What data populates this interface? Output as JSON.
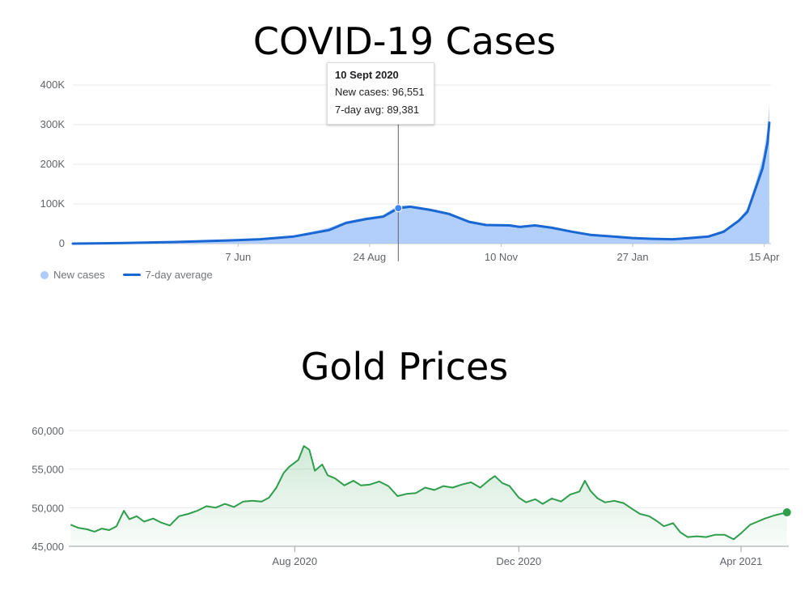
{
  "chart_data": [
    {
      "type": "area",
      "title": "COVID-19 Cases",
      "y_ticks": [
        "400K",
        "300K",
        "200K",
        "100K",
        "0"
      ],
      "y_tick_values": [
        400000,
        300000,
        200000,
        100000,
        0
      ],
      "x_tick_labels": [
        "7 Jun",
        "24 Aug",
        "10 Nov",
        "27 Jan",
        "15 Apr"
      ],
      "x_tick_dates": [
        "2020-06-07",
        "2020-08-24",
        "2020-11-10",
        "2021-01-27",
        "2021-04-15"
      ],
      "ylim": [
        0,
        400000
      ],
      "xlim": [
        "2020-03-01",
        "2021-04-19"
      ],
      "grid": true,
      "legend_position": "bottom-left",
      "series": [
        {
          "name": "7-day average",
          "style": "line",
          "color": "#1967d2",
          "points": [
            [
              "2020-03-01",
              0
            ],
            [
              "2020-04-01",
              1500
            ],
            [
              "2020-05-01",
              4000
            ],
            [
              "2020-06-01",
              8000
            ],
            [
              "2020-06-20",
              11000
            ],
            [
              "2020-07-10",
              18000
            ],
            [
              "2020-07-31",
              34000
            ],
            [
              "2020-08-10",
              52000
            ],
            [
              "2020-08-22",
              62000
            ],
            [
              "2020-09-01",
              68000
            ],
            [
              "2020-09-10",
              89381
            ],
            [
              "2020-09-17",
              93000
            ],
            [
              "2020-09-29",
              85000
            ],
            [
              "2020-10-10",
              75000
            ],
            [
              "2020-10-22",
              55000
            ],
            [
              "2020-11-01",
              47000
            ],
            [
              "2020-11-15",
              46000
            ],
            [
              "2020-11-21",
              42000
            ],
            [
              "2020-11-30",
              46000
            ],
            [
              "2020-12-10",
              40000
            ],
            [
              "2020-12-22",
              30000
            ],
            [
              "2021-01-02",
              22000
            ],
            [
              "2021-01-12",
              19000
            ],
            [
              "2021-01-27",
              14000
            ],
            [
              "2021-02-08",
              12000
            ],
            [
              "2021-02-20",
              11000
            ],
            [
              "2021-03-02",
              14000
            ],
            [
              "2021-03-13",
              18000
            ],
            [
              "2021-03-22",
              30000
            ],
            [
              "2021-03-31",
              58000
            ],
            [
              "2021-04-05",
              80000
            ],
            [
              "2021-04-10",
              140000
            ],
            [
              "2021-04-14",
              190000
            ],
            [
              "2021-04-17",
              255000
            ],
            [
              "2021-04-18",
              305000
            ]
          ]
        },
        {
          "name": "New cases",
          "style": "bars",
          "color": "#aecbfa",
          "points": [
            [
              "2020-03-01",
              0
            ],
            [
              "2020-04-01",
              2000
            ],
            [
              "2020-05-01",
              5000
            ],
            [
              "2020-06-01",
              9000
            ],
            [
              "2020-06-20",
              12000
            ],
            [
              "2020-07-10",
              20000
            ],
            [
              "2020-07-31",
              40000
            ],
            [
              "2020-08-10",
              56000
            ],
            [
              "2020-08-22",
              66000
            ],
            [
              "2020-09-01",
              72000
            ],
            [
              "2020-09-10",
              96551
            ],
            [
              "2020-09-17",
              96000
            ],
            [
              "2020-09-29",
              88000
            ],
            [
              "2020-10-10",
              78000
            ],
            [
              "2020-10-22",
              58000
            ],
            [
              "2020-11-01",
              49000
            ],
            [
              "2020-11-15",
              47000
            ],
            [
              "2020-11-21",
              43000
            ],
            [
              "2020-11-30",
              48000
            ],
            [
              "2020-12-10",
              42000
            ],
            [
              "2020-12-22",
              32000
            ],
            [
              "2021-01-02",
              24000
            ],
            [
              "2021-01-12",
              20000
            ],
            [
              "2021-01-27",
              15000
            ],
            [
              "2021-02-08",
              13000
            ],
            [
              "2021-02-20",
              12000
            ],
            [
              "2021-03-02",
              15000
            ],
            [
              "2021-03-13",
              20000
            ],
            [
              "2021-03-22",
              34000
            ],
            [
              "2021-03-31",
              62000
            ],
            [
              "2021-04-05",
              88000
            ],
            [
              "2021-04-10",
              155000
            ],
            [
              "2021-04-14",
              215000
            ],
            [
              "2021-04-17",
              290000
            ],
            [
              "2021-04-18",
              350000
            ]
          ]
        }
      ],
      "tooltip": {
        "date": "10 Sept 2020",
        "new_cases_label": "New cases: 96,551",
        "avg_label": "7-day avg: 89,381",
        "x": "2020-09-10",
        "value": 89381
      }
    },
    {
      "type": "area",
      "title": "Gold Prices",
      "y_ticks": [
        "60,000",
        "55,000",
        "50,000",
        "45,000"
      ],
      "y_tick_values": [
        60000,
        55000,
        50000,
        45000
      ],
      "x_tick_labels": [
        "Aug 2020",
        "Dec 2020",
        "Apr 2021"
      ],
      "x_tick_dates": [
        "2020-08-01",
        "2020-12-01",
        "2021-04-01"
      ],
      "ylim": [
        45000,
        60000
      ],
      "xlim": [
        "2020-03-31",
        "2021-04-27"
      ],
      "grid": true,
      "series": [
        {
          "name": "",
          "color": "#2e9e4c",
          "points": [
            [
              "2020-04-01",
              47800
            ],
            [
              "2020-04-05",
              47400
            ],
            [
              "2020-04-10",
              47200
            ],
            [
              "2020-04-14",
              46900
            ],
            [
              "2020-04-18",
              47300
            ],
            [
              "2020-04-22",
              47100
            ],
            [
              "2020-04-26",
              47600
            ],
            [
              "2020-04-30",
              49600
            ],
            [
              "2020-05-03",
              48500
            ],
            [
              "2020-05-07",
              48900
            ],
            [
              "2020-05-11",
              48200
            ],
            [
              "2020-05-16",
              48600
            ],
            [
              "2020-05-20",
              48100
            ],
            [
              "2020-05-25",
              47700
            ],
            [
              "2020-05-30",
              48900
            ],
            [
              "2020-06-04",
              49200
            ],
            [
              "2020-06-09",
              49600
            ],
            [
              "2020-06-14",
              50200
            ],
            [
              "2020-06-19",
              50000
            ],
            [
              "2020-06-24",
              50500
            ],
            [
              "2020-06-29",
              50100
            ],
            [
              "2020-07-04",
              50800
            ],
            [
              "2020-07-09",
              50900
            ],
            [
              "2020-07-14",
              50800
            ],
            [
              "2020-07-18",
              51300
            ],
            [
              "2020-07-22",
              52600
            ],
            [
              "2020-07-26",
              54500
            ],
            [
              "2020-07-29",
              55300
            ],
            [
              "2020-08-03",
              56200
            ],
            [
              "2020-08-06",
              58000
            ],
            [
              "2020-08-09",
              57500
            ],
            [
              "2020-08-12",
              54800
            ],
            [
              "2020-08-16",
              55600
            ],
            [
              "2020-08-19",
              54200
            ],
            [
              "2020-08-23",
              53800
            ],
            [
              "2020-08-28",
              52900
            ],
            [
              "2020-09-02",
              53500
            ],
            [
              "2020-09-06",
              52900
            ],
            [
              "2020-09-11",
              53000
            ],
            [
              "2020-09-16",
              53400
            ],
            [
              "2020-09-21",
              52800
            ],
            [
              "2020-09-26",
              51500
            ],
            [
              "2020-10-01",
              51800
            ],
            [
              "2020-10-06",
              51900
            ],
            [
              "2020-10-11",
              52600
            ],
            [
              "2020-10-16",
              52300
            ],
            [
              "2020-10-21",
              52800
            ],
            [
              "2020-10-26",
              52600
            ],
            [
              "2020-10-31",
              53000
            ],
            [
              "2020-11-05",
              53300
            ],
            [
              "2020-11-10",
              52600
            ],
            [
              "2020-11-15",
              53600
            ],
            [
              "2020-11-18",
              54100
            ],
            [
              "2020-11-22",
              53200
            ],
            [
              "2020-11-26",
              52800
            ],
            [
              "2020-12-01",
              51300
            ],
            [
              "2020-12-05",
              50700
            ],
            [
              "2020-12-10",
              51100
            ],
            [
              "2020-12-14",
              50500
            ],
            [
              "2020-12-19",
              51200
            ],
            [
              "2020-12-24",
              50800
            ],
            [
              "2020-12-29",
              51700
            ],
            [
              "2021-01-03",
              52100
            ],
            [
              "2021-01-06",
              53500
            ],
            [
              "2021-01-09",
              52200
            ],
            [
              "2021-01-13",
              51200
            ],
            [
              "2021-01-17",
              50700
            ],
            [
              "2021-01-22",
              50900
            ],
            [
              "2021-01-27",
              50600
            ],
            [
              "2021-02-01",
              49800
            ],
            [
              "2021-02-05",
              49200
            ],
            [
              "2021-02-10",
              48900
            ],
            [
              "2021-02-14",
              48300
            ],
            [
              "2021-02-18",
              47600
            ],
            [
              "2021-02-23",
              48000
            ],
            [
              "2021-02-27",
              46800
            ],
            [
              "2021-03-03",
              46200
            ],
            [
              "2021-03-08",
              46300
            ],
            [
              "2021-03-13",
              46200
            ],
            [
              "2021-03-18",
              46500
            ],
            [
              "2021-03-23",
              46500
            ],
            [
              "2021-03-28",
              45900
            ],
            [
              "2021-04-01",
              46700
            ],
            [
              "2021-04-06",
              47800
            ],
            [
              "2021-04-10",
              48200
            ],
            [
              "2021-04-14",
              48600
            ],
            [
              "2021-04-19",
              49000
            ],
            [
              "2021-04-26",
              49400
            ]
          ]
        }
      ]
    }
  ]
}
